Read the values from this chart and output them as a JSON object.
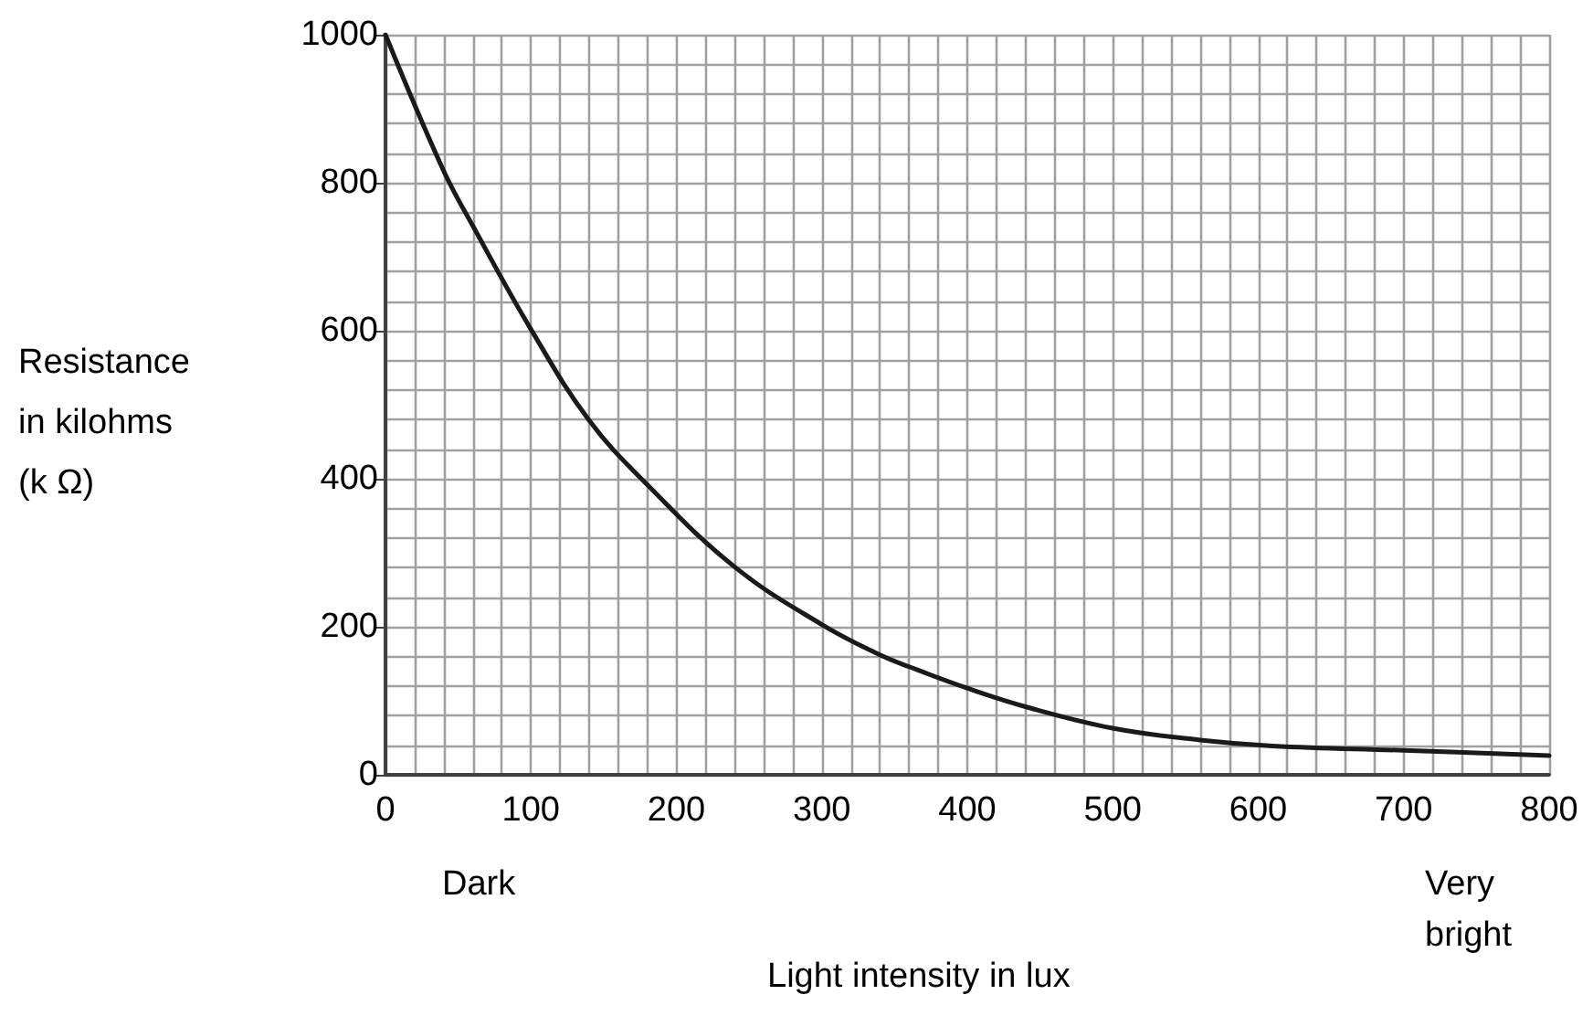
{
  "chart_data": {
    "type": "line",
    "xlabel": "Light intensity in lux",
    "ylabel": "Resistance\nin kilohms\n(k Ω)",
    "annotations": [
      "Dark",
      "Very\nbright"
    ],
    "series": [
      {
        "color": "#1a1a1a",
        "x": [
          0,
          40,
          60,
          100,
          140,
          180,
          240,
          300,
          340,
          360,
          400,
          440,
          500,
          560,
          610,
          700,
          800
        ],
        "values": [
          1000,
          816,
          742,
          602,
          479,
          392,
          281,
          203,
          162,
          146,
          117,
          92,
          63,
          47,
          39,
          33,
          26
        ]
      }
    ],
    "xlim": [
      0,
      800
    ],
    "xticks": [
      0,
      100,
      200,
      300,
      400,
      500,
      600,
      700,
      800
    ],
    "ylim": [
      0,
      1000
    ],
    "yticks": [
      0,
      200,
      400,
      600,
      800,
      1000
    ],
    "grid": true,
    "marker": "none",
    "line_style": "solid"
  }
}
